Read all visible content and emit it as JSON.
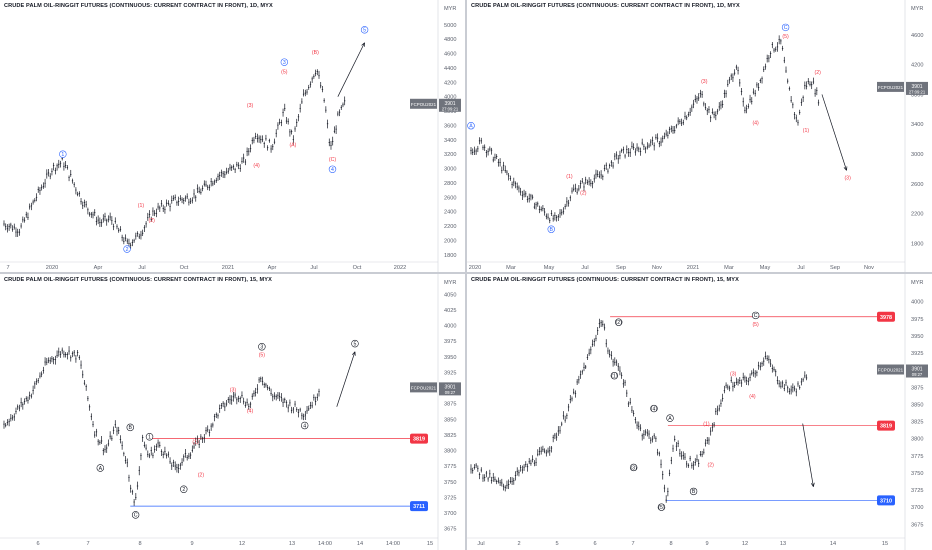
{
  "panels": [
    {
      "id": "tl",
      "title": "CRUDE PALM OIL-RINGGIT FUTURES (CONTINUOUS: CURRENT CONTRACT IN FRONT), 1D, MYX",
      "currency": "MYR",
      "price_tag": {
        "symbol": "FCPOU2021",
        "price": "3901",
        "sub": "27:09:21"
      },
      "chart_data": {
        "type": "line",
        "x_tick_labels": [
          "7",
          "2020",
          "Apr",
          "Jul",
          "Oct",
          "2021",
          "Apr",
          "Jul",
          "Oct",
          "2022"
        ],
        "y_ticks": [
          1800,
          2000,
          2200,
          2400,
          2600,
          2800,
          3000,
          3200,
          3400,
          3600,
          3800,
          4000,
          4200,
          4400,
          4600,
          4800,
          5000
        ],
        "ylim": [
          1700,
          5150
        ],
        "series": [
          {
            "x": [
              0,
              15,
              30,
              45,
              55,
              75,
              90,
              100,
              115,
              125,
              140,
              160,
              175,
              185,
              200,
              215,
              225,
              235,
              250,
              262,
              270,
              280,
              292,
              300,
              305,
              312,
              320
            ],
            "y": [
              2230,
              2150,
              2600,
              3000,
              3100,
              2500,
              2250,
              2300,
              1950,
              2050,
              2400,
              2550,
              2600,
              2700,
              2900,
              3000,
              3100,
              3500,
              3300,
              3800,
              3400,
              4000,
              4400,
              3900,
              3250,
              3700,
              3950
            ]
          }
        ],
        "annotations": [
          {
            "label": "1",
            "kind": "circle",
            "color": "#2962ff",
            "x": 55,
            "y": 3200
          },
          {
            "label": "2",
            "kind": "circle",
            "color": "#2962ff",
            "x": 115,
            "y": 1880
          },
          {
            "label": "(1)",
            "kind": "text",
            "color": "#f23645",
            "x": 128,
            "y": 2490
          },
          {
            "label": "(2)",
            "kind": "text",
            "color": "#f23645",
            "x": 138,
            "y": 2280
          },
          {
            "label": "(3)",
            "kind": "text",
            "color": "#f23645",
            "x": 230,
            "y": 3880
          },
          {
            "label": "(4)",
            "kind": "text",
            "color": "#f23645",
            "x": 236,
            "y": 3050
          },
          {
            "label": "3",
            "kind": "circle",
            "color": "#2962ff",
            "x": 262,
            "y": 4480
          },
          {
            "label": "(5)",
            "kind": "text",
            "color": "#f23645",
            "x": 262,
            "y": 4350
          },
          {
            "label": "(A)",
            "kind": "text",
            "color": "#f23645",
            "x": 270,
            "y": 3330
          },
          {
            "label": "(B)",
            "kind": "text",
            "color": "#f23645",
            "x": 291,
            "y": 4620
          },
          {
            "label": "(C)",
            "kind": "text",
            "color": "#f23645",
            "x": 307,
            "y": 3130
          },
          {
            "label": "4",
            "kind": "circle",
            "color": "#2962ff",
            "x": 307,
            "y": 2990
          },
          {
            "label": "5",
            "kind": "circle",
            "color": "#2962ff",
            "x": 337,
            "y": 4930
          }
        ],
        "arrow": {
          "from": [
            312,
            4000
          ],
          "to": [
            337,
            4750
          ]
        }
      }
    },
    {
      "id": "tr",
      "title": "CRUDE PALM OIL-RINGGIT FUTURES (CONTINUOUS: CURRENT CONTRACT IN FRONT), 1D, MYX",
      "currency": "MYR",
      "price_tag": {
        "symbol": "FCPOU2021",
        "price": "3901",
        "sub": "27:09:21"
      },
      "chart_data": {
        "type": "line",
        "x_tick_labels": [
          "2020",
          "Mar",
          "May",
          "Jul",
          "Sep",
          "Nov",
          "2021",
          "Mar",
          "May",
          "Jul",
          "Sep",
          "Nov"
        ],
        "y_ticks": [
          1800,
          2200,
          2600,
          3000,
          3400,
          3800,
          4200,
          4600
        ],
        "ylim": [
          1550,
          4880
        ],
        "series": [
          {
            "x": [
              0,
              10,
              25,
              40,
              55,
              70,
              80,
              95,
              105,
              120,
              140,
              160,
              180,
              200,
              215,
              225,
              232,
              240,
              248,
              255,
              260,
              268,
              280,
              290,
              295,
              300,
              305,
              312,
              318,
              326
            ],
            "y": [
              3050,
              3150,
              2900,
              2600,
              2400,
              2200,
              2100,
              2500,
              2600,
              2700,
              3000,
              3100,
              3200,
              3500,
              3800,
              3500,
              3600,
              3900,
              4200,
              3600,
              3700,
              3900,
              4400,
              4500,
              4000,
              3700,
              3400,
              3900,
              4000,
              3700
            ]
          }
        ],
        "annotations": [
          {
            "label": "A",
            "kind": "circle",
            "color": "#2962ff",
            "x": 0,
            "y": 3380
          },
          {
            "label": "B",
            "kind": "circle",
            "color": "#2962ff",
            "x": 75,
            "y": 1990
          },
          {
            "label": "(1)",
            "kind": "text",
            "color": "#f23645",
            "x": 92,
            "y": 2700
          },
          {
            "label": "(2)",
            "kind": "text",
            "color": "#f23645",
            "x": 105,
            "y": 2480
          },
          {
            "label": "(3)",
            "kind": "text",
            "color": "#f23645",
            "x": 218,
            "y": 3980
          },
          {
            "label": "(4)",
            "kind": "text",
            "color": "#f23645",
            "x": 266,
            "y": 3420
          },
          {
            "label": "C",
            "kind": "circle",
            "color": "#2962ff",
            "x": 294,
            "y": 4700
          },
          {
            "label": "(5)",
            "kind": "text",
            "color": "#f23645",
            "x": 294,
            "y": 4580
          },
          {
            "label": "(1)",
            "kind": "text",
            "color": "#f23645",
            "x": 313,
            "y": 3320
          },
          {
            "label": "(2)",
            "kind": "text",
            "color": "#f23645",
            "x": 324,
            "y": 4100
          },
          {
            "label": "(3)",
            "kind": "text",
            "color": "#f23645",
            "x": 352,
            "y": 2680
          }
        ],
        "arrow": {
          "from": [
            328,
            3800
          ],
          "to": [
            351,
            2780
          ]
        }
      }
    },
    {
      "id": "bl",
      "title": "CRUDE PALM OIL-RINGGIT FUTURES (CONTINUOUS: CURRENT CONTRACT IN FRONT), 15, MYX",
      "currency": "MYR",
      "price_tag": {
        "symbol": "FCPOU2021",
        "price": "3901",
        "sub": "09:27"
      },
      "chart_data": {
        "type": "line",
        "x_tick_labels": [
          "6",
          "7",
          "8",
          "9",
          "12",
          "13",
          "14:00",
          "14",
          "14:00",
          "15"
        ],
        "y_ticks": [
          3675,
          3700,
          3725,
          3750,
          3775,
          3800,
          3825,
          3850,
          3875,
          3900,
          3925,
          3950,
          3975,
          4000,
          4025,
          4050
        ],
        "ylim": [
          3660,
          4060
        ],
        "series": [
          {
            "x": [
              0,
              10,
              25,
              40,
              55,
              70,
              85,
              95,
              105,
              115,
              122,
              130,
              135,
              145,
              160,
              170,
              180,
              190,
              200,
              210,
              220,
              230,
              240,
              250,
              260,
              270,
              280,
              290,
              295
            ],
            "y": [
              3840,
              3860,
              3890,
              3940,
              3960,
              3950,
              3830,
              3800,
              3840,
              3780,
              3710,
              3820,
              3790,
              3810,
              3770,
              3790,
              3810,
              3830,
              3860,
              3880,
              3890,
              3870,
              3920,
              3890,
              3880,
              3870,
              3860,
              3880,
              3900
            ]
          }
        ],
        "annotations": [
          {
            "label": "A",
            "kind": "circle",
            "color": "#131722",
            "x": 90,
            "y": 3772
          },
          {
            "label": "B",
            "kind": "circle",
            "color": "#131722",
            "x": 118,
            "y": 3837
          },
          {
            "label": "C",
            "kind": "circle",
            "color": "#131722",
            "x": 123,
            "y": 3697
          },
          {
            "label": "1",
            "kind": "circle",
            "color": "#131722",
            "x": 136,
            "y": 3822
          },
          {
            "label": "(1)",
            "kind": "text",
            "color": "#f23645",
            "x": 179,
            "y": 3814
          },
          {
            "label": "(2)",
            "kind": "text",
            "color": "#f23645",
            "x": 184,
            "y": 3761
          },
          {
            "label": "2",
            "kind": "circle",
            "color": "#131722",
            "x": 168,
            "y": 3738
          },
          {
            "label": "(3)",
            "kind": "text",
            "color": "#f23645",
            "x": 214,
            "y": 3897
          },
          {
            "label": "(4)",
            "kind": "text",
            "color": "#f23645",
            "x": 230,
            "y": 3864
          },
          {
            "label": "3",
            "kind": "circle",
            "color": "#131722",
            "x": 241,
            "y": 3966
          },
          {
            "label": "(5)",
            "kind": "text",
            "color": "#f23645",
            "x": 241,
            "y": 3953
          },
          {
            "label": "4",
            "kind": "circle",
            "color": "#131722",
            "x": 281,
            "y": 3840
          },
          {
            "label": "5",
            "kind": "circle",
            "color": "#131722",
            "x": 328,
            "y": 3971
          }
        ],
        "arrow": {
          "from": [
            311,
            3870
          ],
          "to": [
            328,
            3958
          ]
        },
        "levels": [
          {
            "value": 3819,
            "label": "3819",
            "color": "#f23645",
            "x_start": 135
          },
          {
            "value": 3711,
            "label": "3711",
            "color": "#2962ff",
            "x_start": 118
          }
        ]
      }
    },
    {
      "id": "br",
      "title": "CRUDE PALM OIL-RINGGIT FUTURES (CONTINUOUS: CURRENT CONTRACT IN FRONT), 15, MYX",
      "currency": "MYR",
      "price_tag": {
        "symbol": "FCPOU2021",
        "price": "3901",
        "sub": "09:27"
      },
      "chart_data": {
        "type": "line",
        "x_tick_labels": [
          "Jul",
          "2",
          "5",
          "6",
          "7",
          "8",
          "9",
          "12",
          "13",
          "14",
          "15"
        ],
        "y_ticks": [
          3675,
          3700,
          3725,
          3750,
          3775,
          3800,
          3825,
          3850,
          3875,
          3900,
          3925,
          3950,
          3975,
          4000
        ],
        "ylim": [
          3655,
          4020
        ],
        "series": [
          {
            "x": [
              0,
              15,
              30,
              45,
              60,
              75,
              90,
              100,
              110,
              122,
              130,
              140,
              150,
              160,
              172,
              178,
              183,
              190,
              200,
              210,
              220,
              230,
              240,
              250,
              262,
              275,
              290,
              300,
              310,
              315
            ],
            "y": [
              3760,
              3745,
              3730,
              3750,
              3770,
              3790,
              3840,
              3880,
              3920,
              3975,
              3920,
              3900,
              3840,
              3810,
              3800,
              3760,
              3710,
              3800,
              3770,
              3760,
              3790,
              3840,
              3880,
              3880,
              3890,
              3920,
              3880,
              3870,
              3880,
              3900
            ]
          }
        ],
        "annotations": [
          {
            "label": "(2)",
            "kind": "circle",
            "color": "#131722",
            "x": 138,
            "y": 3970
          },
          {
            "label": "(1)",
            "kind": "circle",
            "color": "#131722",
            "x": 134,
            "y": 3892
          },
          {
            "label": "(3)",
            "kind": "circle",
            "color": "#131722",
            "x": 152,
            "y": 3758
          },
          {
            "label": "(4)",
            "kind": "circle",
            "color": "#131722",
            "x": 171,
            "y": 3844
          },
          {
            "label": "A",
            "kind": "circle",
            "color": "#131722",
            "x": 186,
            "y": 3830
          },
          {
            "label": "B",
            "kind": "circle",
            "color": "#131722",
            "x": 208,
            "y": 3723
          },
          {
            "label": "(5)",
            "kind": "circle",
            "color": "#131722",
            "x": 178,
            "y": 3700
          },
          {
            "label": "(1)",
            "kind": "text",
            "color": "#f23645",
            "x": 220,
            "y": 3822
          },
          {
            "label": "(2)",
            "kind": "text",
            "color": "#f23645",
            "x": 224,
            "y": 3762
          },
          {
            "label": "(3)",
            "kind": "text",
            "color": "#f23645",
            "x": 245,
            "y": 3895
          },
          {
            "label": "(4)",
            "kind": "text",
            "color": "#f23645",
            "x": 263,
            "y": 3862
          },
          {
            "label": "C",
            "kind": "circle",
            "color": "#131722",
            "x": 266,
            "y": 3980
          },
          {
            "label": "(5)",
            "kind": "text",
            "color": "#f23645",
            "x": 266,
            "y": 3967
          }
        ],
        "arrow": {
          "from": [
            310,
            3822
          ],
          "to": [
            320,
            3730
          ]
        },
        "levels": [
          {
            "value": 3978,
            "label": "3978",
            "color": "#f23645",
            "x_start": 130
          },
          {
            "value": 3819,
            "label": "3819",
            "color": "#f23645",
            "x_start": 184
          },
          {
            "value": 3710,
            "label": "3710",
            "color": "#2962ff",
            "x_start": 182
          }
        ]
      }
    }
  ],
  "colors": {
    "candle": "#131722",
    "grid": "#eef0f3",
    "axis_text": "#5a5f6b",
    "price_tag_bg": "#6f737c",
    "blue": "#2962ff",
    "red": "#f23645"
  }
}
